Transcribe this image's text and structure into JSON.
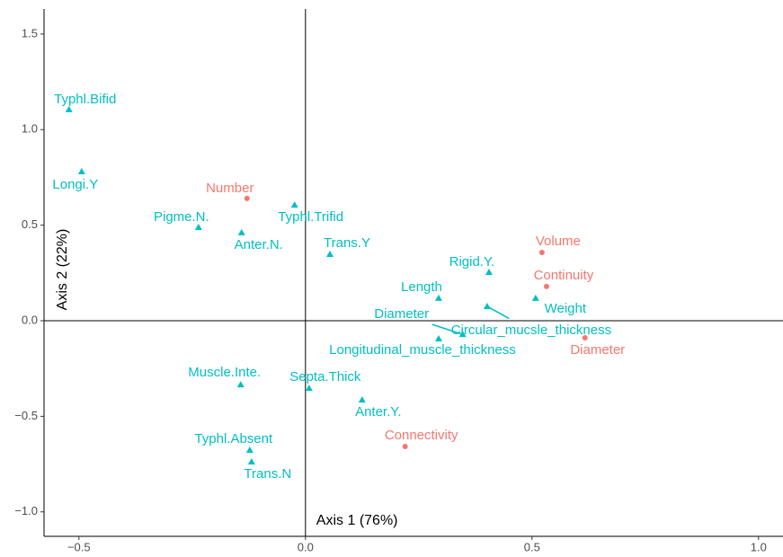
{
  "chart_data": {
    "type": "scatter",
    "annotations": [
      "Axis 1 (76%)",
      "Axis 2 (22%)"
    ],
    "xlim": [
      -0.577,
      1.054
    ],
    "ylim": [
      -1.128,
      1.631
    ],
    "xticks": [
      {
        "value": -0.5,
        "label": "−0.5"
      },
      {
        "value": 0,
        "label": "0.0"
      },
      0.5,
      {
        "value": 1,
        "label": "1.0"
      }
    ],
    "yticks": [
      {
        "value": -1,
        "label": "−1.0"
      },
      {
        "value": -0.5,
        "label": "−0.5"
      },
      {
        "value": 0,
        "label": "0.0"
      },
      0.5,
      {
        "value": 1,
        "label": "1.0"
      },
      1.5
    ],
    "reference_lines": {
      "x": 0,
      "y": 0
    },
    "series": [
      {
        "color": "#f8766d",
        "marker": "circle",
        "labels": [
          "Number",
          "Volume",
          "Continuity",
          "Diameter",
          "Connectivity"
        ],
        "x": [
          -0.129,
          0.522,
          0.532,
          0.617,
          0.22
        ],
        "values": [
          0.64,
          0.357,
          0.179,
          -0.089,
          -0.658
        ]
      },
      {
        "color": "#00bfc4",
        "marker": "triangle",
        "labels": [
          "Typhl.Bifid",
          "Longi.Y",
          "Pigme.N.",
          "Anter.N.",
          "Typhl.Trifid",
          "Trans.Y",
          "Rigid.Y.",
          "Length",
          "Weight",
          "Diameter",
          "Circular_mucsle_thickness",
          "Longitudinal_muscle_thickness",
          "Muscle.Inte.",
          "Septa.Thick",
          "Anter.Y.",
          "Typhl.Absent",
          "Trans.N"
        ],
        "x": [
          -0.522,
          -0.494,
          -0.236,
          -0.141,
          -0.024,
          0.054,
          0.405,
          0.294,
          0.508,
          0.347,
          0.401,
          0.294,
          -0.143,
          0.008,
          0.125,
          -0.123,
          -0.119
        ],
        "values": [
          1.105,
          0.78,
          0.489,
          0.461,
          0.606,
          0.348,
          0.254,
          0.118,
          0.118,
          -0.071,
          0.075,
          -0.094,
          -0.334,
          -0.353,
          -0.414,
          -0.677,
          -0.738
        ]
      }
    ]
  }
}
